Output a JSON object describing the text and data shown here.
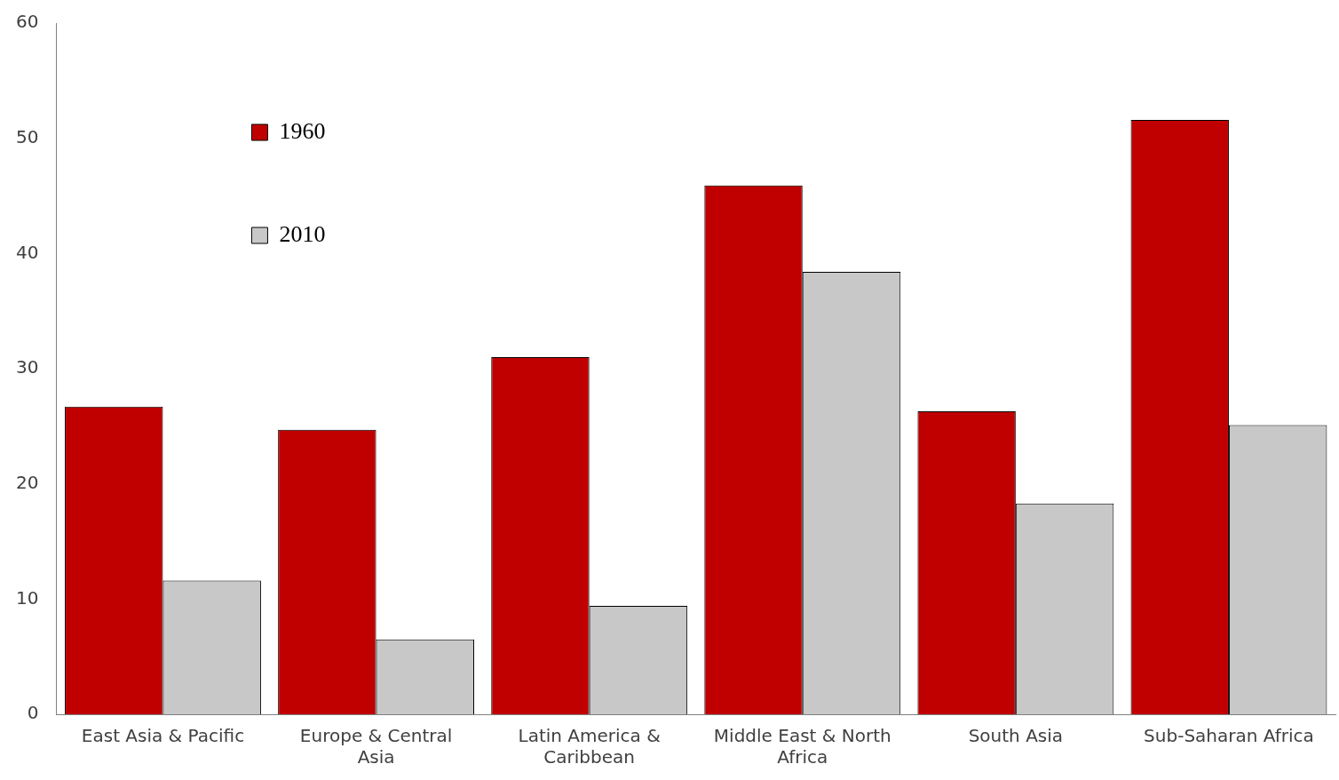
{
  "chart_data": {
    "type": "bar",
    "categories": [
      "East Asia & Pacific",
      "Europe & Central Asia",
      "Latin America & Caribbean",
      "Middle East & North Africa",
      "South Asia",
      "Sub-Saharan Africa"
    ],
    "series": [
      {
        "name": "1960",
        "color": "#c00000",
        "values": [
          26.7,
          24.7,
          31.0,
          45.9,
          26.3,
          51.6
        ]
      },
      {
        "name": "2010",
        "color": "#c8c8c8",
        "values": [
          11.6,
          6.5,
          9.4,
          38.4,
          18.3,
          25.1
        ]
      }
    ],
    "ylim": [
      0,
      60
    ],
    "yticks": [
      0,
      10,
      20,
      30,
      40,
      50,
      60
    ],
    "grid": false,
    "legend": "top left"
  }
}
